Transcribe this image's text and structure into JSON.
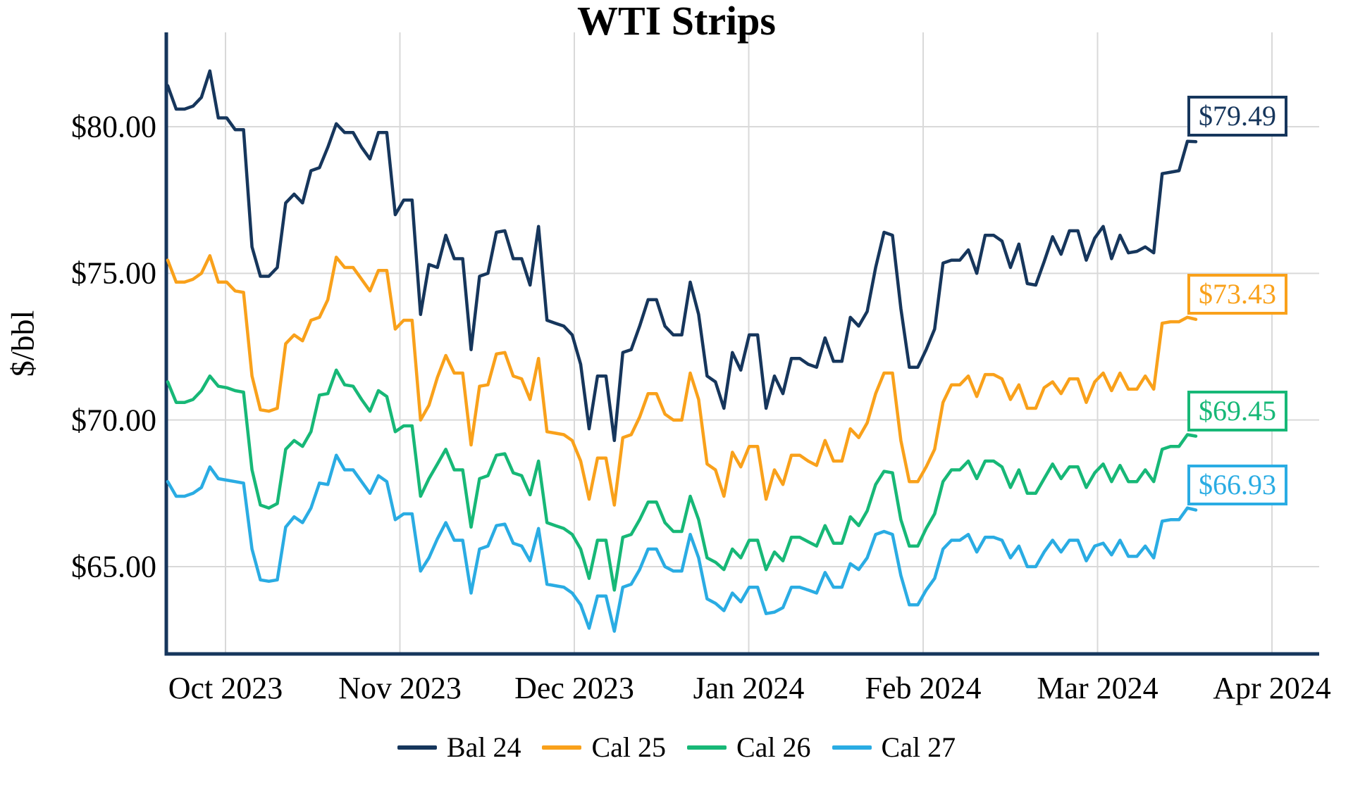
{
  "title": "WTI Strips",
  "y_axis": {
    "label": "$/bbl",
    "ticks": [
      "$80.00",
      "$75.00",
      "$70.00",
      "$65.00"
    ],
    "tick_values": [
      80,
      75,
      70,
      65
    ]
  },
  "x_axis": {
    "ticks": [
      "Oct 2023",
      "Nov 2023",
      "Dec 2023",
      "Jan 2024",
      "Feb 2024",
      "Mar 2024",
      "Apr 2024"
    ]
  },
  "colors": {
    "axis": "#16365C",
    "grid": "#D9D9D9",
    "background": "#FFFFFF"
  },
  "chart_data": {
    "type": "line",
    "title": "WTI Strips",
    "ylabel": "$/bbl",
    "xlabel": "",
    "x_tick_labels": [
      "Oct 2023",
      "Nov 2023",
      "Dec 2023",
      "Jan 2024",
      "Feb 2024",
      "Mar 2024",
      "Apr 2024"
    ],
    "ylim": [
      62,
      83.2
    ],
    "grid": true,
    "legend_position": "bottom",
    "series": [
      {
        "name": "Bal 24",
        "color": "#16365C",
        "end_label": "$79.49",
        "values": [
          81.4,
          80.6,
          80.6,
          80.7,
          81.0,
          81.9,
          80.3,
          80.3,
          79.9,
          79.9,
          75.9,
          74.9,
          74.9,
          75.2,
          77.4,
          77.7,
          77.4,
          78.5,
          78.6,
          79.3,
          80.1,
          79.8,
          79.8,
          79.3,
          78.9,
          79.8,
          79.8,
          77.0,
          77.5,
          77.5,
          73.6,
          75.3,
          75.2,
          76.3,
          75.5,
          75.5,
          72.4,
          74.9,
          75.0,
          76.4,
          76.45,
          75.5,
          75.5,
          74.6,
          76.6,
          73.4,
          73.3,
          73.2,
          72.9,
          71.9,
          69.7,
          71.5,
          71.5,
          69.3,
          72.3,
          72.4,
          73.2,
          74.1,
          74.1,
          73.2,
          72.9,
          72.9,
          74.7,
          73.6,
          71.5,
          71.3,
          70.4,
          72.3,
          71.7,
          72.9,
          72.9,
          70.4,
          71.5,
          70.9,
          72.1,
          72.1,
          71.9,
          71.8,
          72.8,
          72.0,
          72.0,
          73.5,
          73.2,
          73.7,
          75.2,
          76.4,
          76.3,
          73.8,
          71.8,
          71.8,
          72.4,
          73.1,
          75.35,
          75.45,
          75.45,
          75.8,
          75.0,
          76.3,
          76.3,
          76.1,
          75.2,
          76.0,
          74.65,
          74.6,
          75.4,
          76.25,
          75.65,
          76.45,
          76.45,
          75.45,
          76.2,
          76.6,
          75.5,
          76.3,
          75.7,
          75.75,
          75.9,
          75.7,
          78.4,
          78.45,
          78.5,
          79.5,
          79.49
        ]
      },
      {
        "name": "Cal 25",
        "color": "#F9A11B",
        "end_label": "$73.43",
        "values": [
          75.45,
          74.7,
          74.7,
          74.8,
          75.0,
          75.6,
          74.7,
          74.7,
          74.4,
          74.35,
          71.5,
          70.35,
          70.3,
          70.4,
          72.6,
          72.9,
          72.7,
          73.4,
          73.5,
          74.1,
          75.55,
          75.2,
          75.2,
          74.8,
          74.4,
          75.1,
          75.1,
          73.1,
          73.4,
          73.4,
          70.0,
          70.5,
          71.45,
          72.2,
          71.6,
          71.6,
          69.15,
          71.15,
          71.2,
          72.25,
          72.3,
          71.5,
          71.4,
          70.7,
          72.1,
          69.6,
          69.55,
          69.5,
          69.3,
          68.6,
          67.3,
          68.7,
          68.7,
          67.1,
          69.4,
          69.5,
          70.1,
          70.9,
          70.9,
          70.2,
          70.0,
          70.0,
          71.6,
          70.7,
          68.5,
          68.3,
          67.4,
          68.9,
          68.4,
          69.1,
          69.1,
          67.3,
          68.3,
          67.8,
          68.8,
          68.8,
          68.6,
          68.45,
          69.3,
          68.6,
          68.6,
          69.7,
          69.4,
          69.9,
          70.9,
          71.6,
          71.6,
          69.3,
          67.9,
          67.9,
          68.4,
          69.0,
          70.6,
          71.2,
          71.2,
          71.5,
          70.8,
          71.55,
          71.55,
          71.4,
          70.7,
          71.2,
          70.4,
          70.4,
          71.1,
          71.3,
          70.9,
          71.4,
          71.4,
          70.6,
          71.3,
          71.6,
          71.0,
          71.6,
          71.05,
          71.05,
          71.5,
          71.05,
          73.3,
          73.35,
          73.35,
          73.5,
          73.43
        ]
      },
      {
        "name": "Cal 26",
        "color": "#17B877",
        "end_label": "$69.45",
        "values": [
          71.3,
          70.6,
          70.6,
          70.7,
          71.0,
          71.5,
          71.15,
          71.1,
          71.0,
          70.95,
          68.3,
          67.1,
          67.0,
          67.15,
          69.0,
          69.3,
          69.1,
          69.6,
          70.85,
          70.9,
          71.7,
          71.2,
          71.15,
          70.7,
          70.3,
          71.0,
          70.8,
          69.6,
          69.8,
          69.8,
          67.4,
          68.0,
          68.5,
          69.0,
          68.3,
          68.3,
          66.35,
          68.0,
          68.1,
          68.8,
          68.85,
          68.2,
          68.1,
          67.45,
          68.6,
          66.5,
          66.4,
          66.3,
          66.1,
          65.6,
          64.6,
          65.9,
          65.9,
          64.2,
          66.0,
          66.1,
          66.6,
          67.2,
          67.2,
          66.5,
          66.2,
          66.2,
          67.4,
          66.6,
          65.3,
          65.15,
          64.9,
          65.6,
          65.3,
          65.9,
          65.9,
          64.9,
          65.5,
          65.2,
          66.0,
          66.0,
          65.85,
          65.7,
          66.4,
          65.8,
          65.8,
          66.7,
          66.4,
          66.9,
          67.8,
          68.25,
          68.2,
          66.6,
          65.7,
          65.7,
          66.3,
          66.8,
          67.9,
          68.3,
          68.3,
          68.6,
          68.0,
          68.6,
          68.6,
          68.4,
          67.7,
          68.3,
          67.5,
          67.5,
          68.0,
          68.5,
          68.0,
          68.4,
          68.4,
          67.7,
          68.2,
          68.5,
          67.9,
          68.45,
          67.9,
          67.9,
          68.3,
          67.9,
          69.0,
          69.1,
          69.1,
          69.5,
          69.45
        ]
      },
      {
        "name": "Cal 27",
        "color": "#2AACE3",
        "end_label": "$66.93",
        "values": [
          67.9,
          67.4,
          67.4,
          67.5,
          67.7,
          68.4,
          68.0,
          67.95,
          67.9,
          67.85,
          65.6,
          64.55,
          64.5,
          64.55,
          66.35,
          66.7,
          66.5,
          67.0,
          67.85,
          67.8,
          68.8,
          68.3,
          68.3,
          67.9,
          67.5,
          68.1,
          67.9,
          66.6,
          66.8,
          66.8,
          64.85,
          65.3,
          65.95,
          66.5,
          65.9,
          65.9,
          64.1,
          65.6,
          65.7,
          66.4,
          66.45,
          65.8,
          65.7,
          65.2,
          66.3,
          64.4,
          64.35,
          64.3,
          64.1,
          63.7,
          62.9,
          64.0,
          64.0,
          62.8,
          64.3,
          64.4,
          64.9,
          65.6,
          65.6,
          65.0,
          64.85,
          64.85,
          66.1,
          65.3,
          63.9,
          63.75,
          63.5,
          64.1,
          63.8,
          64.3,
          64.3,
          63.4,
          63.45,
          63.6,
          64.3,
          64.3,
          64.2,
          64.1,
          64.8,
          64.3,
          64.3,
          65.1,
          64.9,
          65.3,
          66.1,
          66.2,
          66.1,
          64.7,
          63.7,
          63.7,
          64.2,
          64.6,
          65.6,
          65.9,
          65.9,
          66.1,
          65.5,
          66.0,
          66.0,
          65.9,
          65.3,
          65.7,
          65.0,
          65.0,
          65.5,
          65.9,
          65.5,
          65.9,
          65.9,
          65.2,
          65.7,
          65.8,
          65.4,
          65.9,
          65.35,
          65.35,
          65.7,
          65.3,
          66.55,
          66.6,
          66.6,
          67.0,
          66.93
        ]
      }
    ]
  }
}
